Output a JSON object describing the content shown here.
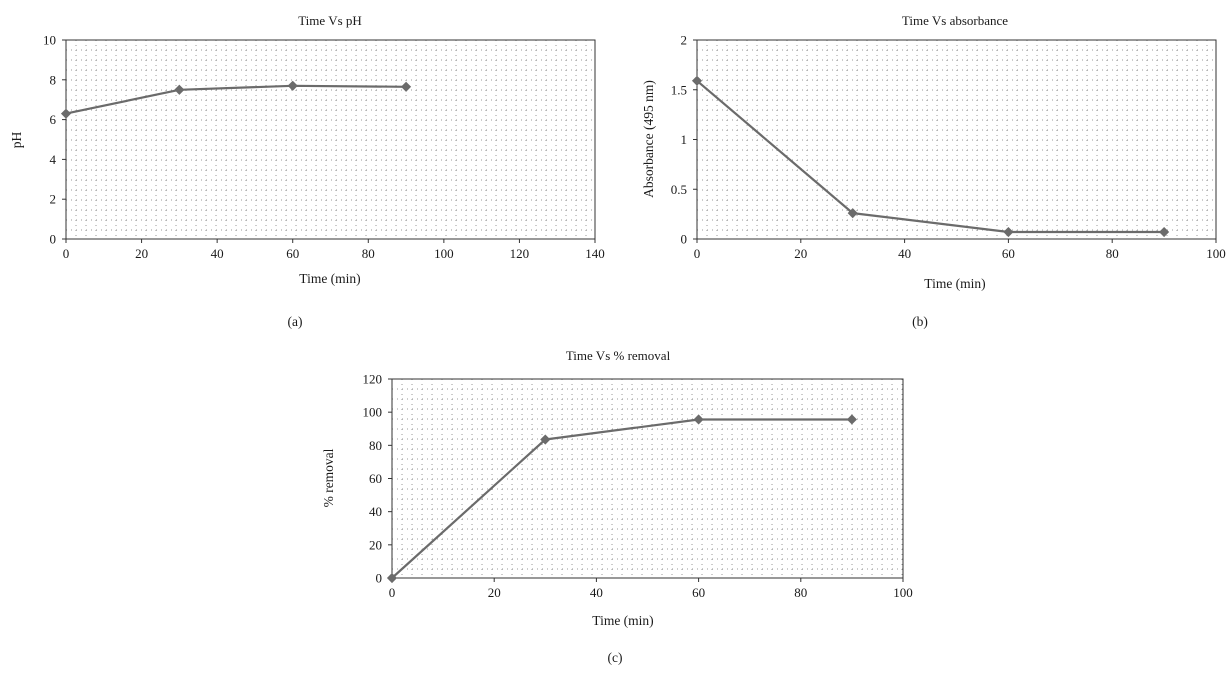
{
  "colors": {
    "series": "#6b6b6b",
    "axis": "#333333",
    "grid": "#9a9a9a"
  },
  "chart_data": [
    {
      "type": "line",
      "panel_label": "(a)",
      "title": "Time Vs pH",
      "xlabel": "Time (min)",
      "ylabel": "pH",
      "xlim": [
        0,
        140
      ],
      "ylim": [
        0,
        10
      ],
      "xticks": [
        0,
        20,
        40,
        60,
        80,
        100,
        120,
        140
      ],
      "yticks": [
        0,
        2,
        4,
        6,
        8,
        10
      ],
      "grid": true,
      "series": [
        {
          "x": [
            0,
            30,
            60,
            90
          ],
          "values": [
            6.3,
            7.5,
            7.7,
            7.65
          ],
          "marker": "diamond"
        }
      ]
    },
    {
      "type": "line",
      "panel_label": "(b)",
      "title": "Time Vs absorbance",
      "xlabel": "Time (min)",
      "ylabel": "Absorbance (495 nm)",
      "xlim": [
        0,
        100
      ],
      "ylim": [
        0,
        2
      ],
      "xticks": [
        0,
        20,
        40,
        60,
        80,
        100
      ],
      "yticks": [
        0,
        0.5,
        1,
        1.5,
        2
      ],
      "grid": true,
      "series": [
        {
          "x": [
            0,
            30,
            60,
            90
          ],
          "values": [
            1.59,
            0.26,
            0.07,
            0.07
          ],
          "marker": "diamond"
        }
      ]
    },
    {
      "type": "line",
      "panel_label": "(c)",
      "title": "Time Vs % removal",
      "xlabel": "Time (min)",
      "ylabel": "% removal",
      "xlim": [
        0,
        100
      ],
      "ylim": [
        0,
        120
      ],
      "xticks": [
        0,
        20,
        40,
        60,
        80,
        100
      ],
      "yticks": [
        0,
        20,
        40,
        60,
        80,
        100,
        120
      ],
      "grid": true,
      "series": [
        {
          "x": [
            0,
            30,
            60,
            90
          ],
          "values": [
            0,
            83.5,
            95.6,
            95.6
          ],
          "marker": "diamond"
        }
      ]
    }
  ]
}
